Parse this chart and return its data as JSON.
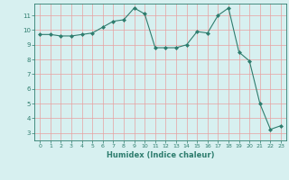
{
  "x": [
    0,
    1,
    2,
    3,
    4,
    5,
    6,
    7,
    8,
    9,
    10,
    11,
    12,
    13,
    14,
    15,
    16,
    17,
    18,
    19,
    20,
    21,
    22,
    23
  ],
  "y": [
    9.7,
    9.7,
    9.6,
    9.6,
    9.7,
    9.8,
    10.2,
    10.6,
    10.7,
    11.5,
    11.1,
    8.8,
    8.8,
    8.8,
    9.0,
    9.9,
    9.8,
    11.0,
    11.5,
    8.5,
    7.9,
    5.0,
    3.25,
    3.5
  ],
  "xlabel": "Humidex (Indice chaleur)",
  "line_color": "#2e7d6e",
  "marker_color": "#2e7d6e",
  "bg_color": "#d7f0f0",
  "grid_color": "#e8a0a0",
  "text_color": "#2e7d6e",
  "ylim": [
    2.5,
    11.8
  ],
  "xlim": [
    -0.5,
    23.5
  ],
  "yticks": [
    3,
    4,
    5,
    6,
    7,
    8,
    9,
    10,
    11
  ],
  "xticks": [
    0,
    1,
    2,
    3,
    4,
    5,
    6,
    7,
    8,
    9,
    10,
    11,
    12,
    13,
    14,
    15,
    16,
    17,
    18,
    19,
    20,
    21,
    22,
    23
  ]
}
